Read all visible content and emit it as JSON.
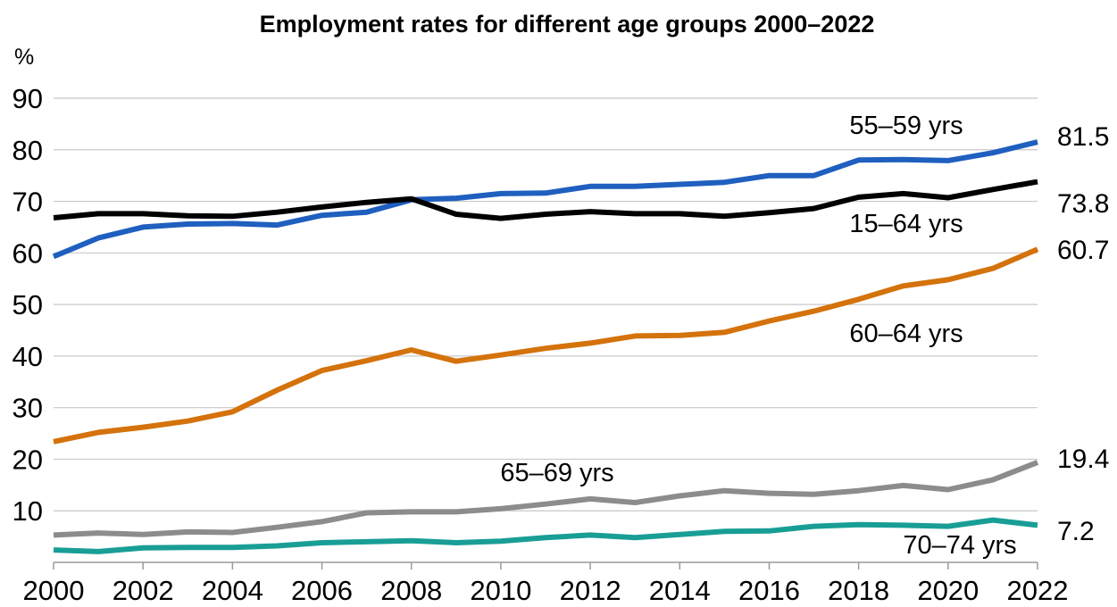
{
  "chart_data": {
    "type": "line",
    "title": "Employment rates for different age groups 2000–2022",
    "ylabel": "%",
    "xlabel": "",
    "ylim": [
      0,
      90
    ],
    "yticks": [
      10,
      20,
      30,
      40,
      50,
      60,
      70,
      80,
      90
    ],
    "xlim": [
      2000,
      2022
    ],
    "xticks": [
      2000,
      2002,
      2004,
      2006,
      2008,
      2010,
      2012,
      2014,
      2016,
      2018,
      2020,
      2022
    ],
    "grid": true,
    "x": [
      2000,
      2001,
      2002,
      2003,
      2004,
      2005,
      2006,
      2007,
      2008,
      2009,
      2010,
      2011,
      2012,
      2013,
      2014,
      2015,
      2016,
      2017,
      2018,
      2019,
      2020,
      2021,
      2022
    ],
    "series": [
      {
        "name": "55–59 yrs",
        "color": "#1f5fbf",
        "end_label": "81.5",
        "values": [
          59.3,
          62.9,
          65.0,
          65.6,
          65.7,
          65.4,
          67.3,
          67.9,
          70.3,
          70.6,
          71.5,
          71.6,
          72.9,
          72.9,
          73.3,
          73.7,
          75.0,
          75.0,
          78.0,
          78.1,
          77.9,
          79.4,
          81.5
        ]
      },
      {
        "name": "15–64 yrs",
        "color": "#000000",
        "end_label": "73.8",
        "values": [
          66.8,
          67.6,
          67.6,
          67.2,
          67.1,
          67.9,
          68.9,
          69.8,
          70.5,
          67.5,
          66.7,
          67.5,
          68.0,
          67.6,
          67.6,
          67.1,
          67.8,
          68.6,
          70.8,
          71.5,
          70.7,
          72.3,
          73.8
        ]
      },
      {
        "name": "60–64 yrs",
        "color": "#d4720b",
        "end_label": "60.7",
        "values": [
          23.4,
          25.2,
          26.2,
          27.4,
          29.2,
          33.4,
          37.2,
          39.1,
          41.2,
          39.0,
          40.2,
          41.5,
          42.5,
          43.9,
          44.0,
          44.6,
          46.8,
          48.7,
          51.0,
          53.6,
          54.8,
          57.0,
          60.7
        ]
      },
      {
        "name": "65–69 yrs",
        "color": "#8c8c8c",
        "end_label": "19.4",
        "values": [
          5.3,
          5.7,
          5.4,
          5.9,
          5.8,
          6.8,
          7.9,
          9.6,
          9.8,
          9.8,
          10.4,
          11.3,
          12.3,
          11.6,
          12.9,
          13.9,
          13.4,
          13.2,
          13.9,
          14.9,
          14.1,
          16.0,
          19.4
        ]
      },
      {
        "name": "70–74 yrs",
        "color": "#199e96",
        "end_label": "7.2",
        "values": [
          2.4,
          2.1,
          2.8,
          2.9,
          2.9,
          3.2,
          3.8,
          4.0,
          4.2,
          3.8,
          4.1,
          4.8,
          5.3,
          4.8,
          5.4,
          6.0,
          6.1,
          7.0,
          7.3,
          7.2,
          7.0,
          8.2,
          7.2
        ]
      }
    ]
  }
}
